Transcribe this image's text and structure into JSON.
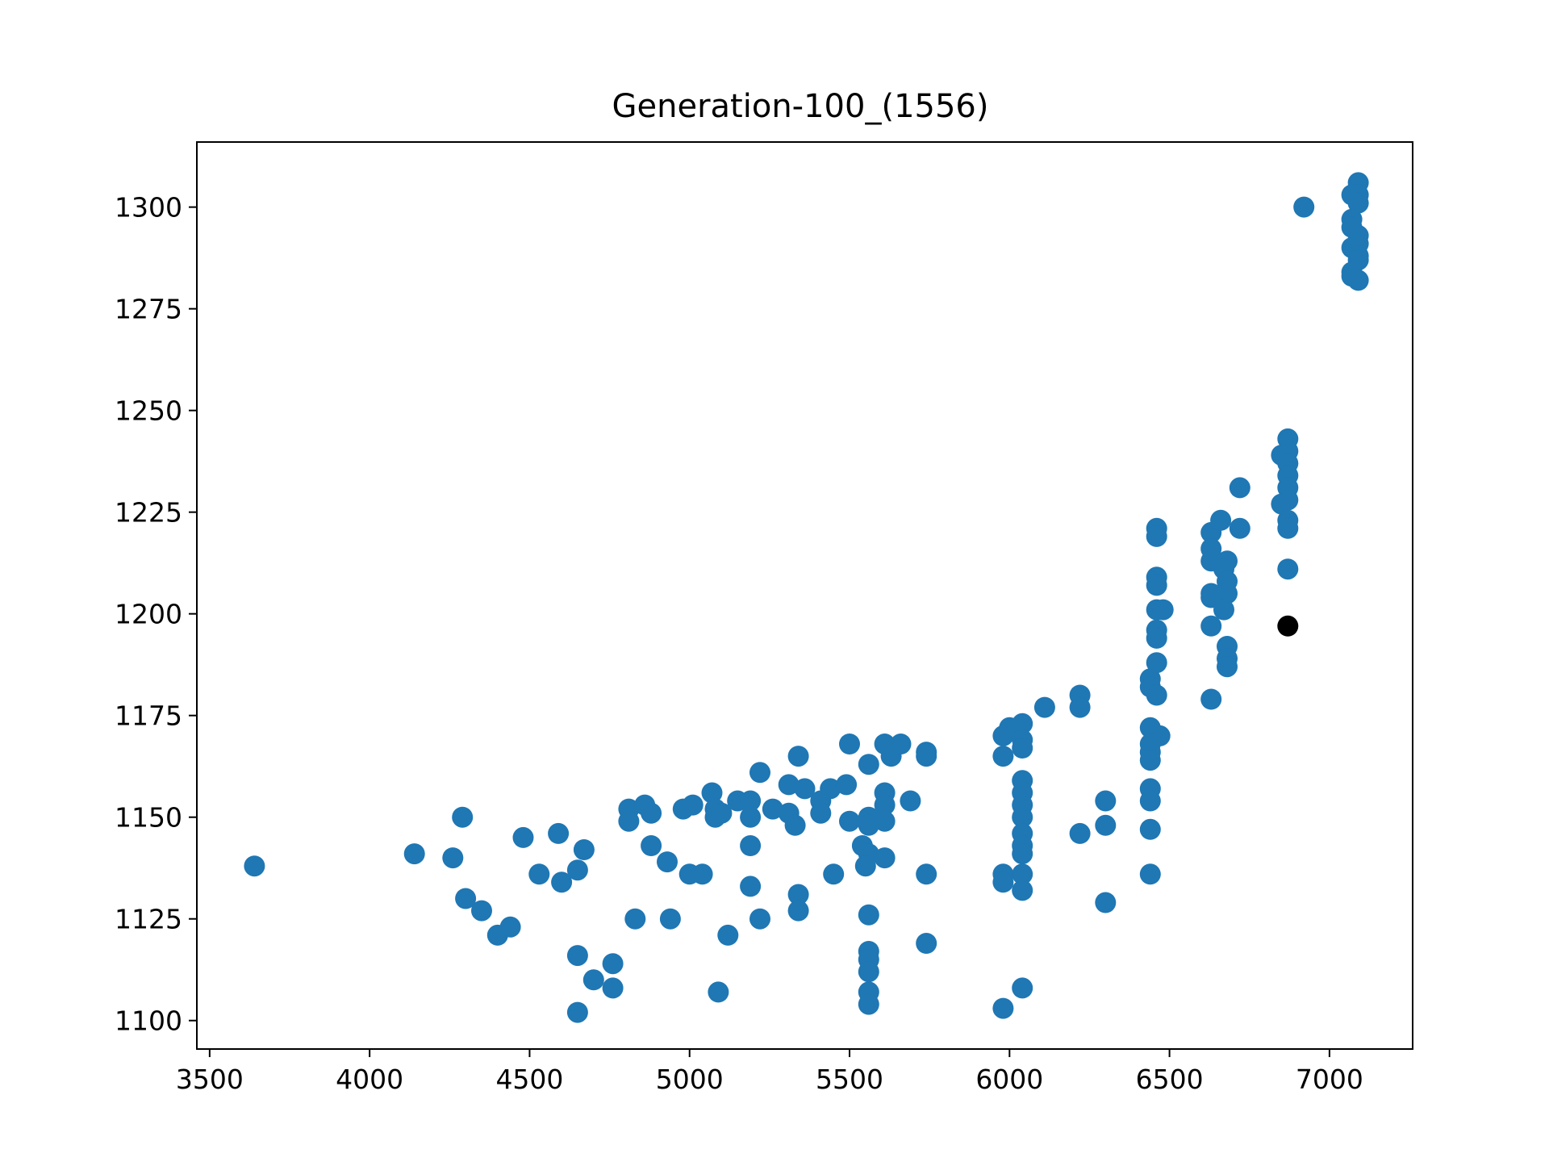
{
  "chart_data": {
    "type": "scatter",
    "title": "Generation-100_(1556)",
    "xlabel": "",
    "ylabel": "",
    "xlim": [
      3460,
      7260
    ],
    "ylim": [
      1093,
      1316
    ],
    "xticks": [
      3500,
      4000,
      4500,
      5000,
      5500,
      6000,
      6500,
      7000
    ],
    "yticks": [
      1100,
      1125,
      1150,
      1175,
      1200,
      1225,
      1250,
      1275,
      1300
    ],
    "grid": false,
    "legend": "none",
    "series": [
      {
        "color": "#1f77b4",
        "points": [
          [
            3640,
            1138
          ],
          [
            4140,
            1141
          ],
          [
            4260,
            1140
          ],
          [
            4290,
            1150
          ],
          [
            4300,
            1130
          ],
          [
            4350,
            1127
          ],
          [
            4400,
            1121
          ],
          [
            4440,
            1123
          ],
          [
            4480,
            1145
          ],
          [
            4530,
            1136
          ],
          [
            4590,
            1146
          ],
          [
            4600,
            1134
          ],
          [
            4650,
            1137
          ],
          [
            4670,
            1142
          ],
          [
            4650,
            1116
          ],
          [
            4700,
            1110
          ],
          [
            4760,
            1114
          ],
          [
            4760,
            1108
          ],
          [
            4650,
            1102
          ],
          [
            4810,
            1152
          ],
          [
            4810,
            1149
          ],
          [
            4860,
            1153
          ],
          [
            4880,
            1151
          ],
          [
            4880,
            1143
          ],
          [
            4930,
            1139
          ],
          [
            4830,
            1125
          ],
          [
            4940,
            1125
          ],
          [
            4980,
            1152
          ],
          [
            5010,
            1153
          ],
          [
            5000,
            1136
          ],
          [
            5040,
            1136
          ],
          [
            5070,
            1156
          ],
          [
            5080,
            1152
          ],
          [
            5080,
            1150
          ],
          [
            5100,
            1151
          ],
          [
            5150,
            1154
          ],
          [
            5190,
            1154
          ],
          [
            5190,
            1150
          ],
          [
            5190,
            1143
          ],
          [
            5190,
            1133
          ],
          [
            5220,
            1161
          ],
          [
            5260,
            1152
          ],
          [
            5310,
            1158
          ],
          [
            5310,
            1151
          ],
          [
            5330,
            1148
          ],
          [
            5340,
            1165
          ],
          [
            5340,
            1131
          ],
          [
            5340,
            1127
          ],
          [
            5360,
            1157
          ],
          [
            5410,
            1154
          ],
          [
            5410,
            1151
          ],
          [
            5440,
            1157
          ],
          [
            5490,
            1158
          ],
          [
            5500,
            1168
          ],
          [
            5500,
            1149
          ],
          [
            5560,
            1163
          ],
          [
            5560,
            1150
          ],
          [
            5560,
            1148
          ],
          [
            5540,
            1143
          ],
          [
            5560,
            1141
          ],
          [
            5550,
            1138
          ],
          [
            5560,
            1126
          ],
          [
            5560,
            1117
          ],
          [
            5560,
            1115
          ],
          [
            5560,
            1112
          ],
          [
            5560,
            1107
          ],
          [
            5560,
            1104
          ],
          [
            5610,
            1168
          ],
          [
            5630,
            1165
          ],
          [
            5660,
            1168
          ],
          [
            5610,
            1156
          ],
          [
            5610,
            1153
          ],
          [
            5610,
            1149
          ],
          [
            5610,
            1140
          ],
          [
            5690,
            1154
          ],
          [
            5740,
            1166
          ],
          [
            5740,
            1165
          ],
          [
            5740,
            1136
          ],
          [
            5740,
            1119
          ],
          [
            5450,
            1136
          ],
          [
            5220,
            1125
          ],
          [
            5120,
            1121
          ],
          [
            5090,
            1107
          ],
          [
            5980,
            1170
          ],
          [
            6000,
            1172
          ],
          [
            6040,
            1173
          ],
          [
            6040,
            1169
          ],
          [
            6040,
            1167
          ],
          [
            5980,
            1165
          ],
          [
            6040,
            1159
          ],
          [
            6040,
            1156
          ],
          [
            6040,
            1153
          ],
          [
            6040,
            1150
          ],
          [
            6040,
            1146
          ],
          [
            6040,
            1143
          ],
          [
            6040,
            1141
          ],
          [
            5980,
            1136
          ],
          [
            6040,
            1136
          ],
          [
            5980,
            1134
          ],
          [
            6040,
            1132
          ],
          [
            6040,
            1108
          ],
          [
            5980,
            1103
          ],
          [
            6110,
            1177
          ],
          [
            6220,
            1180
          ],
          [
            6220,
            1177
          ],
          [
            6220,
            1146
          ],
          [
            6300,
            1154
          ],
          [
            6300,
            1148
          ],
          [
            6300,
            1129
          ],
          [
            6440,
            1184
          ],
          [
            6440,
            1182
          ],
          [
            6460,
            1180
          ],
          [
            6440,
            1172
          ],
          [
            6470,
            1170
          ],
          [
            6440,
            1168
          ],
          [
            6440,
            1166
          ],
          [
            6440,
            1164
          ],
          [
            6440,
            1157
          ],
          [
            6440,
            1154
          ],
          [
            6440,
            1147
          ],
          [
            6440,
            1136
          ],
          [
            6460,
            1221
          ],
          [
            6460,
            1219
          ],
          [
            6460,
            1209
          ],
          [
            6460,
            1207
          ],
          [
            6460,
            1201
          ],
          [
            6480,
            1201
          ],
          [
            6460,
            1196
          ],
          [
            6460,
            1194
          ],
          [
            6460,
            1188
          ],
          [
            6630,
            1220
          ],
          [
            6660,
            1223
          ],
          [
            6630,
            1216
          ],
          [
            6630,
            1213
          ],
          [
            6680,
            1213
          ],
          [
            6670,
            1211
          ],
          [
            6680,
            1208
          ],
          [
            6630,
            1205
          ],
          [
            6680,
            1205
          ],
          [
            6630,
            1204
          ],
          [
            6670,
            1201
          ],
          [
            6630,
            1197
          ],
          [
            6680,
            1192
          ],
          [
            6680,
            1189
          ],
          [
            6680,
            1187
          ],
          [
            6630,
            1179
          ],
          [
            6720,
            1231
          ],
          [
            6720,
            1221
          ],
          [
            6870,
            1243
          ],
          [
            6870,
            1240
          ],
          [
            6850,
            1239
          ],
          [
            6870,
            1237
          ],
          [
            6870,
            1234
          ],
          [
            6870,
            1231
          ],
          [
            6870,
            1228
          ],
          [
            6850,
            1227
          ],
          [
            6870,
            1223
          ],
          [
            6870,
            1221
          ],
          [
            6870,
            1211
          ],
          [
            6920,
            1300
          ],
          [
            7090,
            1306
          ],
          [
            7090,
            1303
          ],
          [
            7070,
            1303
          ],
          [
            7090,
            1301
          ],
          [
            7070,
            1297
          ],
          [
            7070,
            1295
          ],
          [
            7090,
            1293
          ],
          [
            7090,
            1291
          ],
          [
            7070,
            1290
          ],
          [
            7090,
            1288
          ],
          [
            7090,
            1287
          ],
          [
            7070,
            1284
          ],
          [
            7070,
            1283
          ],
          [
            7090,
            1282
          ]
        ]
      },
      {
        "color": "#000000",
        "points": [
          [
            6870,
            1197
          ]
        ]
      }
    ]
  }
}
